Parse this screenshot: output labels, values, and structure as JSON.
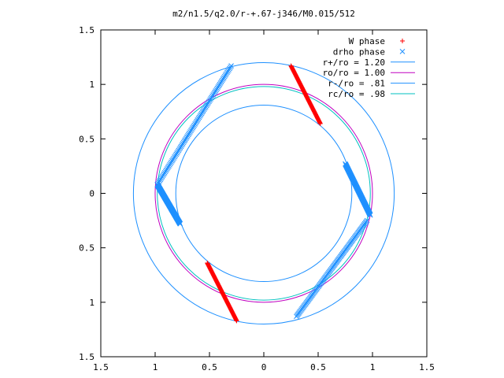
{
  "chart_data": {
    "type": "scatter",
    "title": "m2/n1.5/q2.0/r-+.67-j346/M0.015/512",
    "xlabel": "",
    "ylabel": "",
    "xlim": [
      -1.5,
      1.5
    ],
    "ylim": [
      -1.5,
      1.5
    ],
    "x_ticks": [
      -1.5,
      -1,
      -0.5,
      0,
      0.5,
      1,
      1.5
    ],
    "y_ticks": [
      -1.5,
      -1,
      -0.5,
      0,
      0.5,
      1,
      1.5
    ],
    "x_tick_labels": [
      "1.5",
      "1",
      "0.5",
      "0",
      "0.5",
      "1",
      "1.5"
    ],
    "y_tick_labels": [
      "1.5",
      "1",
      "0.5",
      "0",
      "0.5",
      "1",
      "1.5"
    ],
    "grid": false,
    "legend_position": "top-right",
    "series": [
      {
        "name": "W phase",
        "kind": "points",
        "marker": "plus",
        "color": "#ff0000",
        "arcs": [
          {
            "from": [
              0.25,
              1.17
            ],
            "to": [
              0.52,
              0.64
            ]
          },
          {
            "from": [
              -0.52,
              -0.64
            ],
            "to": [
              -0.25,
              -1.17
            ]
          }
        ]
      },
      {
        "name": "drho phase",
        "kind": "points",
        "marker": "cross",
        "color": "#1e90ff",
        "arcs": [
          {
            "from": [
              0.75,
              0.27
            ],
            "to": [
              0.98,
              -0.2
            ]
          },
          {
            "from": [
              0.95,
              -0.25
            ],
            "to": [
              0.3,
              -1.13
            ]
          },
          {
            "from": [
              -0.3,
              1.17
            ],
            "to": [
              -0.98,
              0.08
            ]
          },
          {
            "from": [
              -0.98,
              0.08
            ],
            "to": [
              -0.77,
              -0.28
            ]
          }
        ]
      },
      {
        "name": "r+/ro = 1.20",
        "kind": "circle",
        "radius": 1.2,
        "color": "#1e90ff"
      },
      {
        "name": "ro/ro = 1.00",
        "kind": "circle",
        "radius": 1.0,
        "color": "#c000c0"
      },
      {
        "name": "r-/ro = .81",
        "kind": "circle",
        "radius": 0.81,
        "color": "#1e90ff"
      },
      {
        "name": "rc/ro = .98",
        "kind": "circle",
        "radius": 0.98,
        "color": "#00c0c0"
      }
    ]
  }
}
